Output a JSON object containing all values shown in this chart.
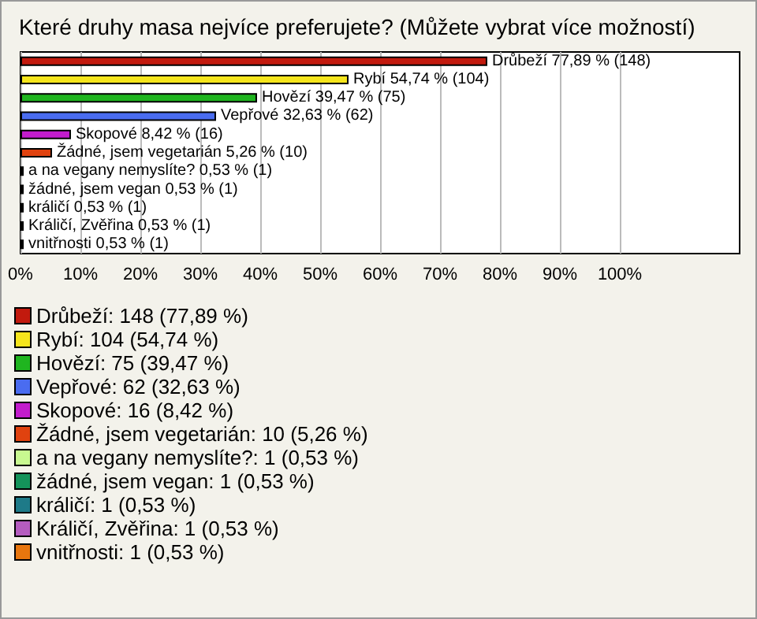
{
  "chart_data": {
    "type": "bar",
    "orientation": "horizontal",
    "title": "Které druhy masa nejvíce preferujete? (Můžete vybrat více možností)",
    "categories": [
      null,
      null,
      null,
      null,
      null,
      null,
      null,
      null,
      null,
      null,
      null
    ],
    "values": [
      77.89,
      54.74,
      39.47,
      32.63,
      8.42,
      5.26,
      0.53,
      0.53,
      0.53,
      0.53,
      0.53
    ],
    "colors": [
      "#c21a0e",
      "#f5e51c",
      "#1fb51f",
      "#4a6cf0",
      "#c21ccc",
      "#e0420f",
      "#c8f890",
      "#14935a",
      "#1e7a88",
      "#b55cbf",
      "#e8760e"
    ],
    "value_labels": [
      "Drůbeží 77,89 % (148)",
      "Rybí 54,74 % (104)",
      "Hovězí 39,47 % (75)",
      "Vepřové 32,63 % (62)",
      "Skopové 8,42 % (16)",
      "Žádné, jsem vegetarián 5,26 % (10)",
      "a na vegany nemyslíte? 0,53 % (1)",
      "žádné, jsem vegan 0,53 % (1)",
      "králičí 0,53 % (1)",
      "Králičí, Zvěřina 0,53 % (1)",
      "vnitřnosti 0,53 % (1)"
    ],
    "xlim": [
      0,
      120
    ],
    "xticks": [
      {
        "value": 0,
        "label": "0%"
      },
      {
        "value": 10,
        "label": "10%"
      },
      {
        "value": 20,
        "label": "20%"
      },
      {
        "value": 30,
        "label": "30%"
      },
      {
        "value": 40,
        "label": "40%"
      },
      {
        "value": 50,
        "label": "50%"
      },
      {
        "value": 60,
        "label": "60%"
      },
      {
        "value": 70,
        "label": "70%"
      },
      {
        "value": 80,
        "label": "80%"
      },
      {
        "value": 90,
        "label": "90%"
      },
      {
        "value": 100,
        "label": "100%"
      }
    ],
    "grid": "x",
    "annotations": [
      "Drůbeží: 148 (77,89 %)",
      "Rybí: 104 (54,74 %)",
      "Hovězí: 75 (39,47 %)",
      "Vepřové: 62 (32,63 %)",
      "Skopové: 16 (8,42 %)",
      "Žádné, jsem vegetarián: 10 (5,26 %)",
      "a na vegany nemyslíte?: 1 (0,53 %)",
      "žádné, jsem vegan: 1 (0,53 %)",
      "králičí: 1 (0,53 %)",
      "Králičí, Zvěřina: 1 (0,53 %)",
      "vnitřnosti: 1 (0,53 %)"
    ]
  }
}
